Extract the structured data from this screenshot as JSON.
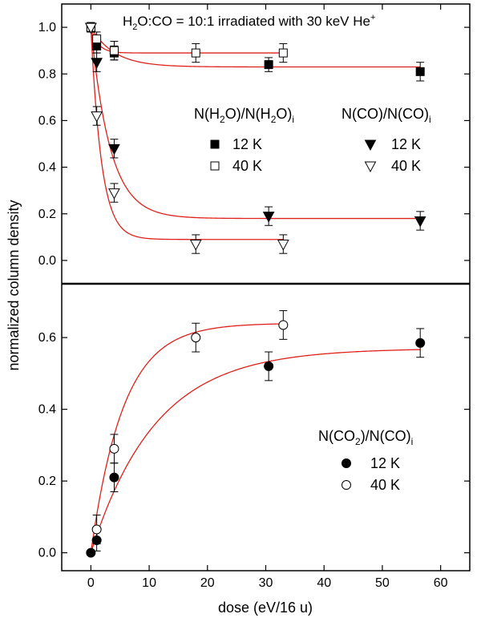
{
  "chart_data": [
    {
      "type": "scatter",
      "panel": "top",
      "title": "H2O:CO = 10:1 irradiated with 30 keV He+",
      "title_parts": {
        "h2o": "H",
        "h2o_sub": "2",
        "rest": "O:CO = 10:1 irradiated with 30 keV He",
        "sup": "+"
      },
      "ylim": [
        -0.1,
        1.1
      ],
      "yticks": [
        0.0,
        0.2,
        0.4,
        0.6,
        0.8,
        1.0
      ],
      "ytick_labels": [
        "0.0",
        "0.2",
        "0.4",
        "0.6",
        "0.8",
        "1.0"
      ],
      "legend_groups": [
        {
          "label": "N(H2O)/N(H2O)i",
          "parts": [
            "N(H",
            "2",
            "O)/N(H",
            "2",
            "O)",
            "i"
          ]
        },
        {
          "label": "N(CO)/N(CO)i",
          "parts": [
            "N(CO)/N(CO)",
            "i"
          ]
        }
      ],
      "series": [
        {
          "name": "12 K",
          "group": "N(H2O)/N(H2O)i",
          "marker": "filled-square",
          "x": [
            0,
            1,
            4,
            30.5,
            56.5
          ],
          "y": [
            1.0,
            0.92,
            0.89,
            0.84,
            0.81
          ],
          "err": [
            0.02,
            0.03,
            0.03,
            0.03,
            0.04
          ],
          "fit": {
            "a": 0.83,
            "b": 0.17,
            "k": 0.25
          }
        },
        {
          "name": "40 K",
          "group": "N(H2O)/N(H2O)i",
          "marker": "open-square",
          "x": [
            0,
            1,
            4,
            18,
            33
          ],
          "y": [
            1.0,
            0.95,
            0.9,
            0.89,
            0.89
          ],
          "err": [
            0.02,
            0.03,
            0.04,
            0.04,
            0.04
          ],
          "fit": {
            "a": 0.89,
            "b": 0.11,
            "k": 0.8
          }
        },
        {
          "name": "12 K",
          "group": "N(CO)/N(CO)i",
          "marker": "filled-triangle-down",
          "x": [
            0,
            1,
            4,
            30.5,
            56.5
          ],
          "y": [
            1.0,
            0.85,
            0.48,
            0.19,
            0.17
          ],
          "err": [
            0.02,
            0.04,
            0.04,
            0.04,
            0.04
          ],
          "fit": {
            "a": 0.18,
            "b": 0.82,
            "k": 0.3
          }
        },
        {
          "name": "40 K",
          "group": "N(CO)/N(CO)i",
          "marker": "open-triangle-down",
          "x": [
            0,
            1,
            4,
            18,
            33
          ],
          "y": [
            1.0,
            0.62,
            0.29,
            0.07,
            0.07
          ],
          "err": [
            0.02,
            0.04,
            0.04,
            0.04,
            0.04
          ],
          "fit": {
            "a": 0.09,
            "b": 0.91,
            "k": 0.55
          }
        }
      ]
    },
    {
      "type": "scatter",
      "panel": "bottom",
      "ylim": [
        -0.05,
        0.75
      ],
      "yticks": [
        0.0,
        0.2,
        0.4,
        0.6
      ],
      "ytick_labels": [
        "0.0",
        "0.2",
        "0.4",
        "0.6"
      ],
      "legend_groups": [
        {
          "label": "N(CO2)/N(CO)i",
          "parts": [
            "N(CO",
            "2",
            ")/N(CO)",
            "i"
          ]
        }
      ],
      "series": [
        {
          "name": "12 K",
          "group": "N(CO2)/N(CO)i",
          "marker": "filled-circle",
          "x": [
            0,
            1,
            4,
            30.5,
            56.5
          ],
          "y": [
            0.0,
            0.035,
            0.21,
            0.52,
            0.585
          ],
          "err": [
            0.0,
            0.03,
            0.04,
            0.04,
            0.04
          ],
          "fit": {
            "a": 0.57,
            "k": 0.09
          }
        },
        {
          "name": "40 K",
          "group": "N(CO2)/N(CO)i",
          "marker": "open-circle",
          "x": [
            1,
            4,
            18,
            33
          ],
          "y": [
            0.065,
            0.29,
            0.6,
            0.635
          ],
          "err": [
            0.04,
            0.04,
            0.04,
            0.04
          ],
          "fit": {
            "a": 0.64,
            "k": 0.18
          }
        }
      ]
    }
  ],
  "axes": {
    "xlabel": "dose (eV/16 u)",
    "ylabel": "normalized column density",
    "xlim": [
      -5,
      65
    ],
    "xticks": [
      0,
      10,
      20,
      30,
      40,
      50,
      60
    ],
    "xtick_labels": [
      "0",
      "10",
      "20",
      "30",
      "40",
      "50",
      "60"
    ]
  },
  "colors": {
    "fit": "#e0201b",
    "marker": "#000000",
    "axis": "#000000"
  }
}
